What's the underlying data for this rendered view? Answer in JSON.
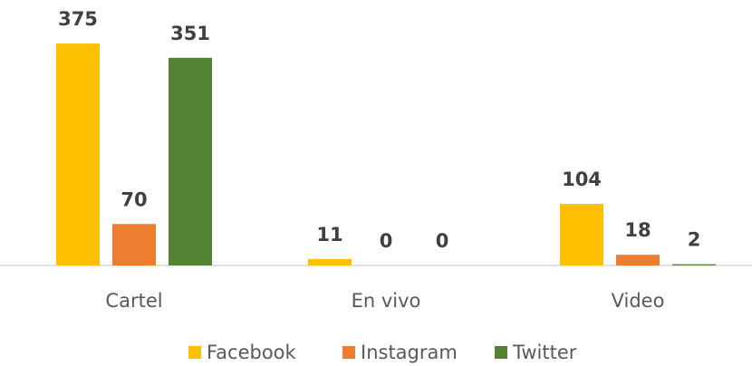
{
  "chart_data": {
    "type": "bar",
    "categories": [
      "Cartel",
      "En vivo",
      "Video"
    ],
    "series": [
      {
        "name": "Facebook",
        "color": "#ffc000",
        "values": [
          375,
          11,
          104
        ]
      },
      {
        "name": "Instagram",
        "color": "#ed7d31",
        "values": [
          70,
          0,
          18
        ]
      },
      {
        "name": "Twitter",
        "color": "#548235",
        "values": [
          351,
          0,
          2
        ]
      }
    ],
    "legend": "bottom"
  }
}
